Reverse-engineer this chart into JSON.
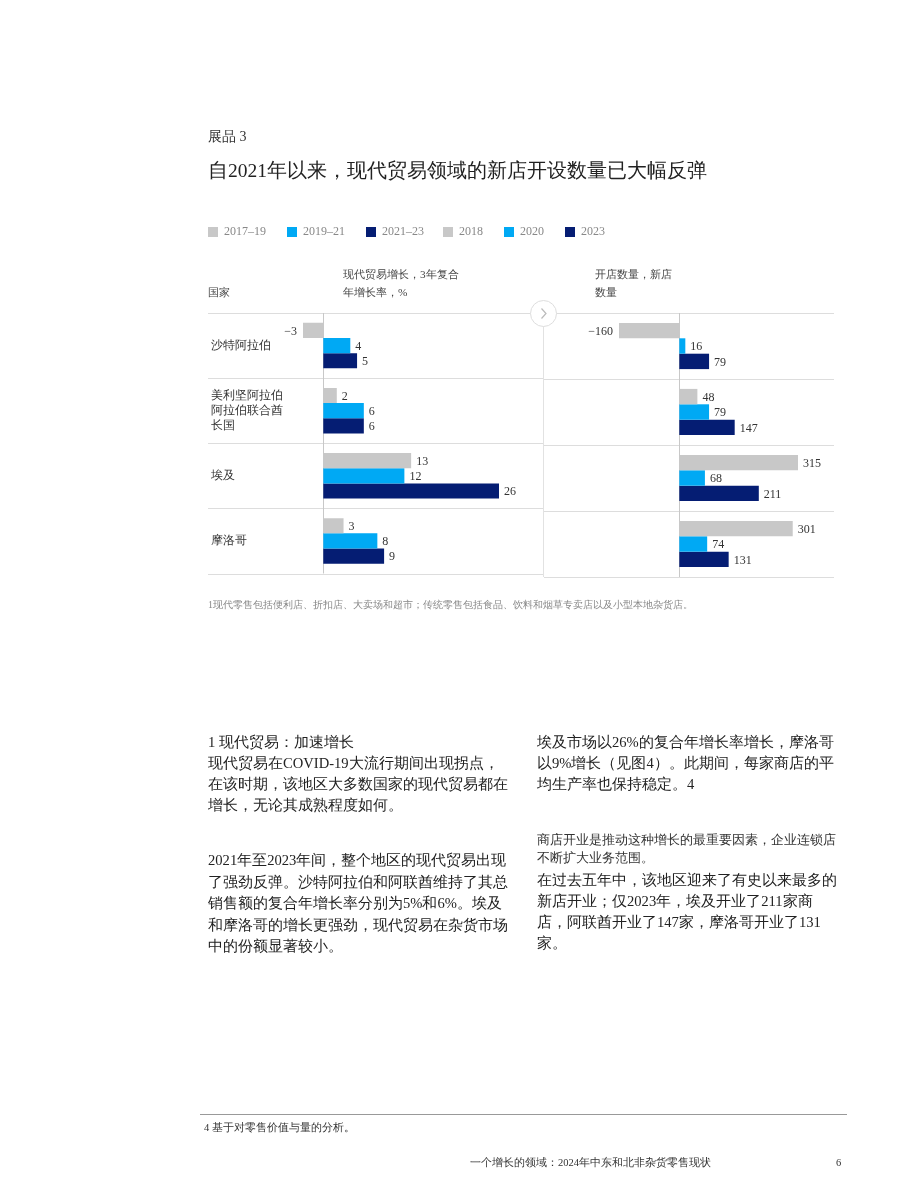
{
  "chart_data": [
    {
      "type": "bar",
      "subtitle": "展品 3",
      "title": "自2021年以来，现代贸易领域的新店开设数量已大幅反弹",
      "xlabel": "现代贸易增长，3年复合年增长率，%",
      "ylabel": "国家",
      "orientation": "horizontal",
      "categories": [
        "沙特阿拉伯",
        "美利坚阿拉伯阿拉伯联合酋长国",
        "埃及",
        "摩洛哥"
      ],
      "series": [
        {
          "name": "2017–19",
          "color": "#c8c8c8",
          "values": [
            -3,
            2,
            13,
            3
          ]
        },
        {
          "name": "2019–21",
          "color": "#00a9f4",
          "values": [
            4,
            6,
            12,
            8
          ]
        },
        {
          "name": "2021–23",
          "color": "#051d73",
          "values": [
            5,
            6,
            26,
            9
          ]
        }
      ],
      "data_labels": true,
      "grid": "y",
      "legend": "top",
      "tick_labels": "y",
      "annotations": [
        "1现代零售包括便利店、折扣店、大卖场和超市；传统零售包括食品、饮料和烟草专卖店以及小型本地杂货店。",
        "1 现代贸易：加速增长",
        "现代贸易在COVID-19大流行期间出现拐点，在该时期，该地区大多数国家的现代贸易都在增长，无论其成熟程度如何。",
        "2021年至2023年间，整个地区的现代贸易出现了强劲反弹。沙特阿拉伯和阿联酋维持了其总销售额的复合年增长率分别为5%和6%。埃及和摩洛哥的增长更强劲，现代贸易在杂货市场中的份额显著较小。",
        "埃及市场以26%的复合年增长率增长，摩洛哥以9%增长（见图4）。此期间，每家商店的平均生产率也保持稳定。4",
        "商店开业是推动这种增长的最重要因素，企业连锁店不断扩大业务范围。",
        "在过去五年中，该地区迎来了有史以来最多的新店开业；仅2023年，埃及开业了211家商店，阿联酋开业了147家，摩洛哥开业了131家。",
        "4 基于对零售价值与量的分析。",
        "一个增长的领域：2024年中东和北非杂货零售现状",
        "6"
      ]
    },
    {
      "type": "bar",
      "xlabel": "开店数量，新店数量",
      "orientation": "horizontal",
      "categories": [
        null,
        null,
        null,
        null
      ],
      "series": [
        {
          "name": "2018",
          "color": "#c8c8c8",
          "values": [
            -160,
            48,
            315,
            301
          ]
        },
        {
          "name": "2020",
          "color": "#00a9f4",
          "values": [
            16,
            79,
            68,
            74
          ]
        },
        {
          "name": "2023",
          "color": "#051d73",
          "values": [
            79,
            147,
            211,
            131
          ]
        }
      ],
      "data_labels": true,
      "grid": "y",
      "legend": "top",
      "tick_labels": false
    }
  ]
}
